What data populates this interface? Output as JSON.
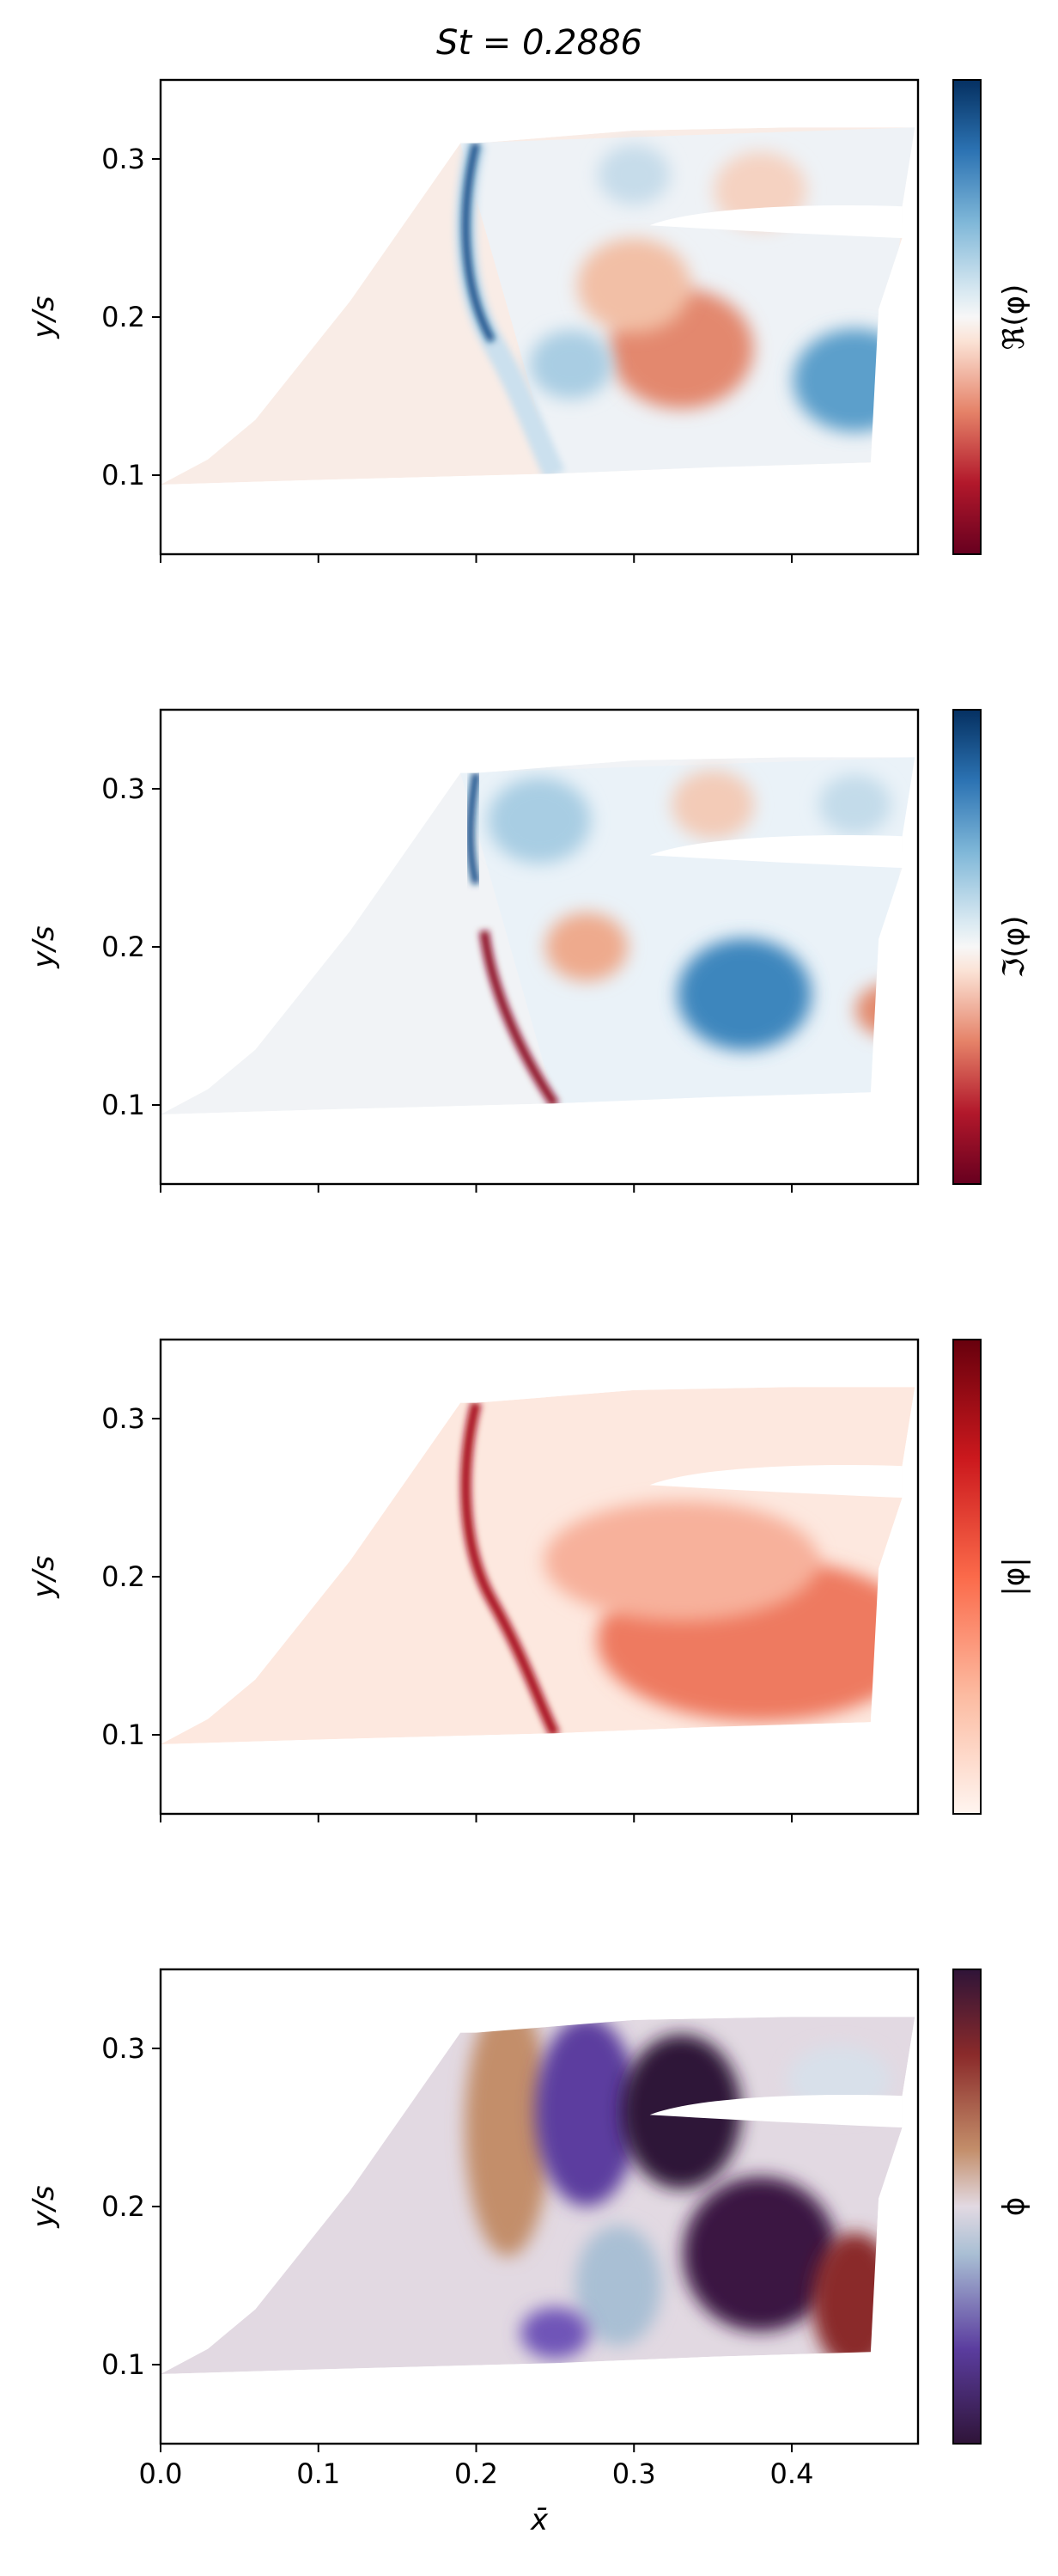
{
  "figure": {
    "title": "St = 0.2886"
  },
  "chart_data": [
    {
      "type": "heatmap",
      "title": "St = 0.2886",
      "xlabel": "",
      "ylabel": "y/s",
      "xlim": [
        0.0,
        0.48
      ],
      "ylim": [
        0.05,
        0.35
      ],
      "x_ticks": [
        0.0,
        0.1,
        0.2,
        0.3,
        0.4
      ],
      "y_ticks": [
        0.1,
        0.2,
        0.3
      ],
      "y_tick_labels": [
        "0.1",
        "0.2",
        "0.3"
      ],
      "colorbar_label": "ℜ(φ)",
      "colormap": "RdBu",
      "colors": [
        "#67001f",
        "#d6604d",
        "#f7f7f7",
        "#4393c3",
        "#053061"
      ],
      "show_x_tick_labels": false,
      "features": [
        {
          "name": "shock",
          "x": 0.2,
          "y_range": [
            0.18,
            0.31
          ],
          "sign": "positive"
        },
        {
          "name": "positive-lobe",
          "x": 0.46,
          "y": 0.16,
          "sign": "positive"
        },
        {
          "name": "negative-lobe",
          "x": 0.33,
          "y": 0.18,
          "sign": "negative"
        }
      ]
    },
    {
      "type": "heatmap",
      "xlabel": "",
      "ylabel": "y/s",
      "xlim": [
        0.0,
        0.48
      ],
      "ylim": [
        0.05,
        0.35
      ],
      "x_ticks": [
        0.0,
        0.1,
        0.2,
        0.3,
        0.4
      ],
      "y_ticks": [
        0.1,
        0.2,
        0.3
      ],
      "y_tick_labels": [
        "0.1",
        "0.2",
        "0.3"
      ],
      "colorbar_label": "ℑ(φ)",
      "colormap": "RdBu",
      "colors": [
        "#67001f",
        "#d6604d",
        "#f7f7f7",
        "#4393c3",
        "#053061"
      ],
      "show_x_tick_labels": false,
      "features": [
        {
          "name": "shock-upper",
          "x": 0.2,
          "y_range": [
            0.24,
            0.31
          ],
          "sign": "positive"
        },
        {
          "name": "shock-lower",
          "x": 0.22,
          "y_range": [
            0.1,
            0.21
          ],
          "sign": "negative"
        },
        {
          "name": "positive-lobe",
          "x": 0.37,
          "y": 0.17,
          "sign": "positive"
        }
      ]
    },
    {
      "type": "heatmap",
      "xlabel": "",
      "ylabel": "y/s",
      "xlim": [
        0.0,
        0.48
      ],
      "ylim": [
        0.05,
        0.35
      ],
      "x_ticks": [
        0.0,
        0.1,
        0.2,
        0.3,
        0.4
      ],
      "y_ticks": [
        0.1,
        0.2,
        0.3
      ],
      "y_tick_labels": [
        "0.1",
        "0.2",
        "0.3"
      ],
      "colorbar_label": "|φ|",
      "colormap": "Reds",
      "colors": [
        "#fff5f0",
        "#fcbba1",
        "#fb6a4a",
        "#cb181d",
        "#67000d"
      ],
      "show_x_tick_labels": false,
      "features": [
        {
          "name": "shock",
          "x": 0.21,
          "y_range": [
            0.1,
            0.31
          ],
          "level": "high"
        },
        {
          "name": "wake",
          "x": 0.4,
          "y": 0.17,
          "level": "medium"
        }
      ]
    },
    {
      "type": "heatmap",
      "xlabel": "x̄",
      "ylabel": "y/s",
      "xlim": [
        0.0,
        0.48
      ],
      "ylim": [
        0.05,
        0.35
      ],
      "x_ticks": [
        0.0,
        0.1,
        0.2,
        0.3,
        0.4
      ],
      "x_tick_labels": [
        "0.0",
        "0.1",
        "0.2",
        "0.3",
        "0.4"
      ],
      "y_ticks": [
        0.1,
        0.2,
        0.3
      ],
      "y_tick_labels": [
        "0.1",
        "0.2",
        "0.3"
      ],
      "colorbar_label": "ϕ",
      "colormap": "twilight_shifted",
      "colors": [
        "#2f1438",
        "#5b3d9f",
        "#a9bfd4",
        "#e2d9e2",
        "#c38e6a",
        "#8a2a2a",
        "#2f1438"
      ],
      "show_x_tick_labels": true,
      "features": [
        {
          "name": "upstream",
          "level": "neutral"
        },
        {
          "name": "phase-bands",
          "x_range": [
            0.19,
            0.47
          ]
        }
      ]
    }
  ]
}
